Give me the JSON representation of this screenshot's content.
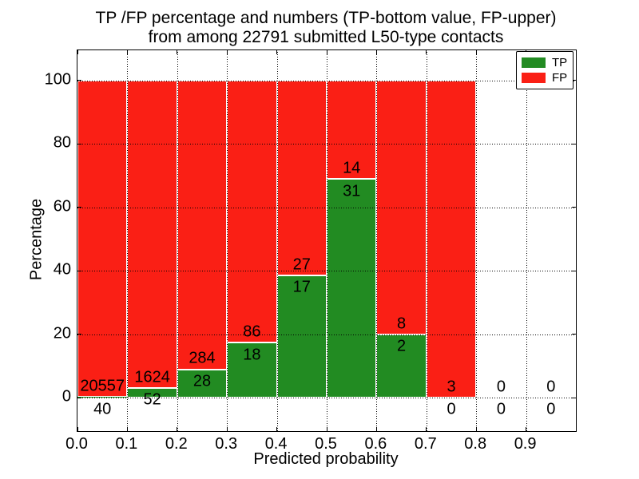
{
  "figure": {
    "title_line1": "TP /FP percentage and numbers (TP-bottom value, FP-upper)",
    "title_line2": "from among 22791 submitted L50-type contacts",
    "xlabel": "Predicted probability",
    "ylabel": "Percentage"
  },
  "legend": {
    "position": "upper right",
    "items": [
      {
        "label": "TP",
        "color": "#228b22"
      },
      {
        "label": "FP",
        "color": "#fa1f15"
      }
    ]
  },
  "chart_data": {
    "type": "bar",
    "stacked": true,
    "title": "TP /FP percentage and numbers (TP-bottom value, FP-upper) from among 22791 submitted L50-type contacts",
    "xlabel": "Predicted probability",
    "ylabel": "Percentage",
    "total_submitted_contacts": 22791,
    "bin_width": 0.1,
    "bin_starts": [
      0.0,
      0.1,
      0.2,
      0.3,
      0.4,
      0.5,
      0.6,
      0.7,
      0.8,
      0.9
    ],
    "series": [
      {
        "name": "TP",
        "color": "#228b22",
        "counts": [
          40,
          52,
          28,
          18,
          17,
          31,
          2,
          0,
          0,
          0
        ]
      },
      {
        "name": "FP",
        "color": "#fa1f15",
        "counts": [
          20557,
          1624,
          284,
          86,
          27,
          14,
          8,
          3,
          0,
          0
        ]
      }
    ],
    "tp_percent_of_bin": [
      0.19,
      3.1,
      8.97,
      17.31,
      38.64,
      68.89,
      20.0,
      0.0,
      null,
      null
    ],
    "bar_total_percent": 100,
    "xticks": [
      "0.0",
      "0.1",
      "0.2",
      "0.3",
      "0.4",
      "0.5",
      "0.6",
      "0.7",
      "0.8",
      "0.9"
    ],
    "yticks": [
      0,
      20,
      40,
      60,
      80,
      100
    ],
    "xlim": [
      0.0,
      1.0
    ],
    "ylim": [
      -10.5,
      109.5
    ],
    "grid": true,
    "grid_style": "dotted",
    "legend_position": "upper right",
    "annotation_note": "TP count drawn below top of green segment, FP count drawn above it"
  }
}
